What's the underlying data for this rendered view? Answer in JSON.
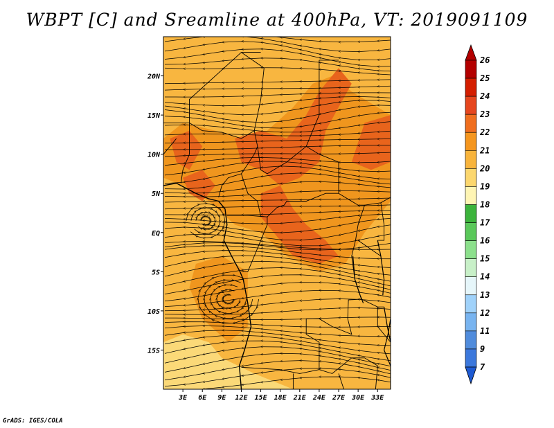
{
  "title": "WBPT [C] and Sreamline at 400hPa, VT: 2019091109",
  "credit": "GrADS: IGES/COLA",
  "colors": {
    "map_base": "#f8b640",
    "warm_band": "#f0961e",
    "hot_core": "#e8641c",
    "cool_south": "#fbd978",
    "land_line": "#000000"
  },
  "chart_data": {
    "type": "heatmap",
    "variable": "WBPT",
    "units": "C",
    "level": "400hPa",
    "valid_time": "2019091109",
    "x_axis": {
      "range": [
        0,
        35
      ],
      "ticks": [
        3,
        6,
        9,
        12,
        15,
        18,
        21,
        24,
        27,
        30,
        33
      ],
      "tick_labels": [
        "3E",
        "6E",
        "9E",
        "12E",
        "15E",
        "18E",
        "21E",
        "24E",
        "27E",
        "30E",
        "33E"
      ]
    },
    "y_axis": {
      "range": [
        -20,
        25
      ],
      "ticks": [
        20,
        15,
        10,
        5,
        0,
        -5,
        -10,
        -15
      ],
      "tick_labels": [
        "20N",
        "15N",
        "10N",
        "5N",
        "EQ",
        "5S",
        "10S",
        "15S"
      ]
    },
    "colorbar": {
      "levels": [
        26,
        25,
        24,
        23,
        22,
        21,
        20,
        19,
        18,
        17,
        16,
        15,
        14,
        13,
        12,
        11,
        9,
        7
      ],
      "labels": [
        "26",
        "25",
        "24",
        "23",
        "22",
        "21",
        "20",
        "19",
        "18",
        "17",
        "16",
        "15",
        "14",
        "13",
        "12",
        "11",
        "9",
        "7"
      ],
      "colors": [
        "#b30000",
        "#d41e00",
        "#e6461e",
        "#f06e1e",
        "#f5961e",
        "#f8b43c",
        "#fcd76e",
        "#fff5b4",
        "#3cb43c",
        "#5ac85a",
        "#8ce08c",
        "#c8f0c8",
        "#e6f6fa",
        "#a0d2fa",
        "#78b4f0",
        "#508cdc",
        "#3c78dc",
        "#1e5ad2"
      ]
    },
    "streamlines": "wind streamlines at 400hPa, predominantly easterly north of the equator, cyclonic swirl near 10E 8S"
  }
}
